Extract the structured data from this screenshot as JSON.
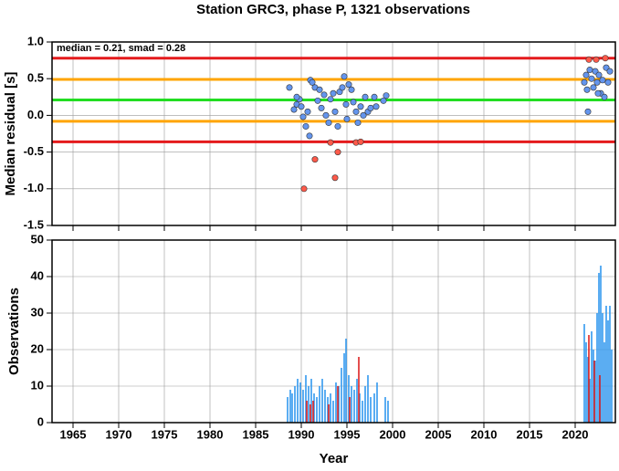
{
  "chart_data": [
    {
      "type": "scatter",
      "title": "Station GRC3, phase P, 1321 observations",
      "ylabel": "Median residual [s]",
      "annotation": "median = 0.21, smad = 0.28",
      "xlim": [
        1962.7,
        2024.4
      ],
      "xticks": [
        1965,
        1970,
        1975,
        1980,
        1985,
        1990,
        1995,
        2000,
        2005,
        2010,
        2015,
        2020
      ],
      "ylim": [
        -1.5,
        1.0
      ],
      "yticks": [
        {
          "value": -1.5,
          "label": "-1.5"
        },
        {
          "value": -1.0,
          "label": "-1.0"
        },
        {
          "value": -0.5,
          "label": "-0.5"
        },
        {
          "value": 0.0,
          "label": "0.0"
        },
        {
          "value": 0.5,
          "label": "0.5"
        },
        {
          "value": 1.0,
          "label": "1.0"
        }
      ],
      "grid": true,
      "hlines": [
        {
          "value": 0.78,
          "color": "#e41a1c"
        },
        {
          "value": 0.49,
          "color": "#ffa500"
        },
        {
          "value": 0.21,
          "color": "#22dd22"
        },
        {
          "value": -0.08,
          "color": "#ffa500"
        },
        {
          "value": -0.36,
          "color": "#e41a1c"
        }
      ],
      "series": [
        {
          "color": "#6495ed",
          "x": [
            1988.7,
            1989.2,
            1989.5,
            1989.8,
            1990.0,
            1990.2,
            1990.5,
            1990.7,
            1990.9,
            1991.0,
            1991.2,
            1991.5,
            1991.8,
            1992.0,
            1992.2,
            1992.5,
            1992.7,
            1993.0,
            1993.2,
            1993.5,
            1993.7,
            1994.0,
            1994.2,
            1994.5,
            1994.7,
            1994.9,
            1995.0,
            1995.2,
            1995.5,
            1995.7,
            1996.0,
            1996.2,
            1996.5,
            1996.8,
            1997.0,
            1997.3,
            1997.6,
            1998.0,
            1998.2,
            1999.0,
            1999.3,
            1989.5,
            2021.0,
            2021.2,
            2021.4,
            2021.6,
            2021.8,
            2022.0,
            2022.2,
            2022.4,
            2022.6,
            2022.8,
            2023.0,
            2023.2,
            2023.4,
            2023.6,
            2023.8,
            2021.3,
            2022.5
          ],
          "values": [
            0.38,
            0.08,
            0.15,
            0.22,
            0.12,
            -0.02,
            -0.15,
            0.05,
            -0.28,
            0.48,
            0.45,
            0.38,
            0.2,
            0.35,
            0.1,
            0.28,
            0.0,
            -0.1,
            0.22,
            0.3,
            0.05,
            -0.15,
            0.32,
            0.38,
            0.53,
            0.15,
            -0.05,
            0.42,
            0.35,
            0.18,
            0.05,
            -0.1,
            0.12,
            0.0,
            0.25,
            0.05,
            0.1,
            0.25,
            0.12,
            0.2,
            0.27,
            0.25,
            0.45,
            0.55,
            0.05,
            0.62,
            0.5,
            0.38,
            0.6,
            0.45,
            0.55,
            0.3,
            0.48,
            0.25,
            0.65,
            0.45,
            0.6,
            0.35,
            0.3
          ]
        },
        {
          "color": "#ff5a4a",
          "x": [
            1990.3,
            1991.5,
            1993.7,
            1994.0,
            1996.0,
            1996.5,
            1993.2,
            2021.5,
            2022.3,
            2023.3
          ],
          "values": [
            -1.0,
            -0.6,
            -0.85,
            -0.5,
            -0.37,
            -0.36,
            -0.37,
            0.76,
            0.76,
            0.78
          ]
        }
      ]
    },
    {
      "type": "bar",
      "ylabel": "Observations",
      "xlabel": "Year",
      "xlim": [
        1962.7,
        2024.4
      ],
      "xticks": [
        1965,
        1970,
        1975,
        1980,
        1985,
        1990,
        1995,
        2000,
        2005,
        2010,
        2015,
        2020
      ],
      "ylim": [
        0,
        50
      ],
      "yticks": [
        0,
        10,
        20,
        30,
        40,
        50
      ],
      "grid": true,
      "series": [
        {
          "color": "#3399ee",
          "x": [
            1988.5,
            1988.8,
            1989.0,
            1989.3,
            1989.6,
            1989.9,
            1990.2,
            1990.5,
            1990.8,
            1991.1,
            1991.4,
            1991.7,
            1992.0,
            1992.3,
            1992.6,
            1992.9,
            1993.2,
            1993.5,
            1993.8,
            1994.1,
            1994.4,
            1994.7,
            1994.9,
            1995.2,
            1995.5,
            1995.8,
            1996.1,
            1996.4,
            1996.7,
            1997.0,
            1997.3,
            1997.6,
            1998.0,
            1998.3,
            1999.2,
            1999.5,
            2021.0,
            2021.2,
            2021.4,
            2021.6,
            2021.8,
            2022.0,
            2022.2,
            2022.4,
            2022.6,
            2022.8,
            2023.0,
            2023.2,
            2023.4,
            2023.6,
            2023.8,
            2024.0
          ],
          "values": [
            7,
            9,
            8,
            10,
            12,
            11,
            9,
            13,
            10,
            12,
            8,
            7,
            10,
            12,
            9,
            7,
            8,
            6,
            11,
            10,
            15,
            19,
            23,
            13,
            10,
            9,
            12,
            8,
            6,
            10,
            13,
            7,
            8,
            11,
            7,
            6,
            27,
            22,
            18,
            12,
            25,
            20,
            17,
            30,
            41,
            43,
            30,
            22,
            32,
            28,
            32,
            20
          ]
        },
        {
          "color": "#dd2222",
          "x": [
            1990.6,
            1991.0,
            1991.3,
            1993.0,
            1994.0,
            1995.3,
            1996.3,
            2021.5,
            2022.1,
            2022.7
          ],
          "values": [
            6,
            5,
            6,
            5,
            10,
            7,
            18,
            24,
            17,
            13
          ]
        }
      ]
    }
  ]
}
